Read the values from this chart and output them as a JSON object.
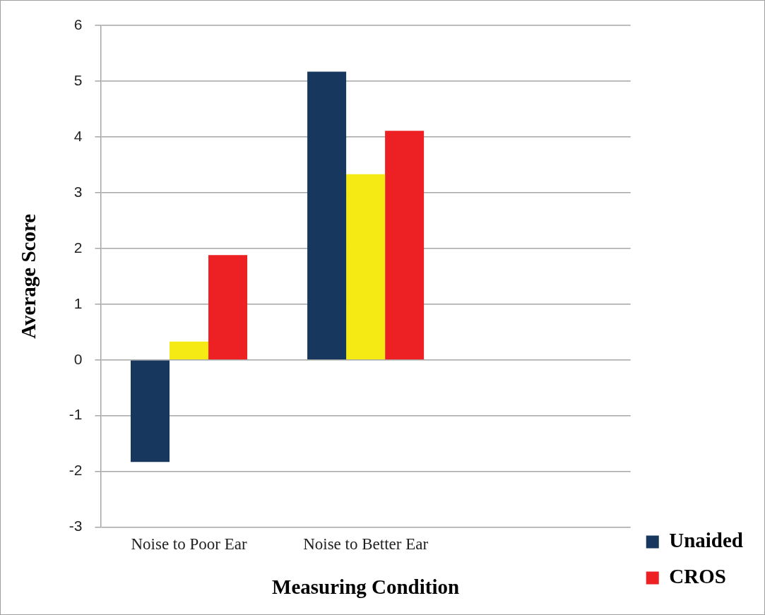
{
  "chart_data": {
    "type": "bar",
    "xlabel": "Measuring Condition",
    "ylabel": "Average Score",
    "categories": [
      "Noise to Poor Ear",
      "Noise to Better Ear",
      null
    ],
    "series": [
      {
        "name": "Unaided",
        "color": "#17375e",
        "values": [
          -1.83,
          5.17,
          null
        ]
      },
      {
        "color": "#f5ea14",
        "values": [
          0.33,
          3.33,
          null
        ]
      },
      {
        "name": "CROS",
        "color": "#ed2024",
        "values": [
          1.88,
          4.11,
          null
        ]
      }
    ],
    "ylim": [
      -3,
      6
    ],
    "yticks": [
      -3,
      -2,
      -1,
      0,
      1,
      2,
      3,
      4,
      5,
      6
    ],
    "grid": "y",
    "legend": "bottom right"
  }
}
